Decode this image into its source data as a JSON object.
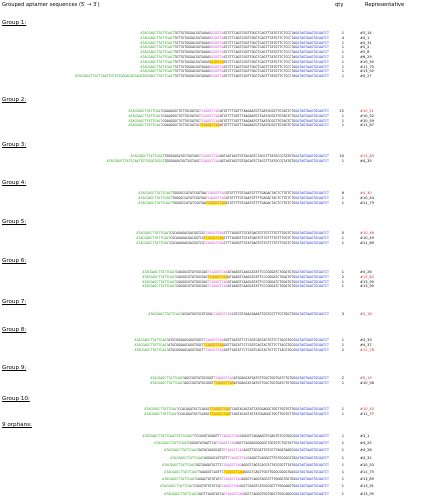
{
  "header": {
    "col1": "Grouped aptamer sequences (5′ → 3′)",
    "col2": "qty",
    "col3": "Representative"
  },
  "colors": {
    "primer_5": "#2aa11b",
    "primer_3": "#1f2fd0",
    "motif": "#cc3ccc",
    "highlight": "#fff200",
    "rep_highlight": "#d0222a"
  },
  "groups": [
    {
      "label": "Group 1:",
      "rows": [
        {
          "lead": "",
          "p5": "ATACGAGCTTATTCAAT",
          "body": "TGTTGTGGGACGGTAGAGGTCTTCAGTCGGTTGGCTCAGTTTATGTTCTCCCTA",
          "motif": "GCGGTCA",
          "p3": "GATAGTAAGTGCAATCT",
          "hl": false,
          "qty": "1",
          "rep": "#3_14",
          "red": false
        },
        {
          "lead": "",
          "p5": "ATACGAGCTTATTCAAT",
          "body": "TGTTGTGGGACGGTAGAGGTCTTCAGTCGGTTGGCTCAGTTTATGTTCTCCCTA",
          "motif": "GCGGTCA",
          "p3": "GATAGTAAGTGCAATCT",
          "hl": false,
          "qty": "4",
          "rep": "#4_1",
          "red": false
        },
        {
          "lead": "",
          "p5": "ATACGAGCTTATTCAAT",
          "body": "TGTTGTGGGACGGTAGAGGTCTTCAGTCGGTTGGCTCAGTTTATGTTCTCCCTA",
          "motif": "GCGGTCA",
          "p3": "GATAGTAAGTGCAATCT",
          "hl": false,
          "qty": "1",
          "rep": "#4_31",
          "red": false
        },
        {
          "lead": "",
          "p5": "ATACGAGCTTATTCAAT",
          "body": "TGTTGTGGGACGGTAGAGGTCTTCAGTCGGTTGGCTCAGTTTATGTTCTCCCTA",
          "motif": "GCGGTCA",
          "p3": "GATAGTAAGTGCAATCT",
          "hl": false,
          "qty": "1",
          "rep": "#5_2",
          "red": false
        },
        {
          "lead": "",
          "p5": "ATACGAGCTTATTCAAT",
          "body": "TGTTGTGGGACGGTAGAGGTCTTCAGTCGGTTGGCTCAGTTTATGTTCTCCCTA",
          "motif": "GCGGTCA",
          "p3": "GATAGTAAGTGCAATCT",
          "hl": false,
          "qty": "1",
          "rep": "#5_8",
          "red": false
        },
        {
          "lead": "",
          "p5": "ATACGAGCTTATTCAAT",
          "body": "TGTTGTGGGACGGTAGAGGTCTTCAGTCGGTTGGCTCAGTTTATGTTCTCCCTA",
          "motif": "GCGGTCA",
          "p3": "GATAGTAAGTGCAATCT",
          "hl": false,
          "qty": "1",
          "rep": "#6_29",
          "red": false
        },
        {
          "lead": "",
          "p5": "ATACGAGCTTATTCAAT",
          "body": "TGTTGTGGGACGGTAGAGGTCTTCAGTCGGTTGGCTCAGTTTATGTTCTCCCTA",
          "motif": "GCGGTCA",
          "p3": "GATAGTAAGTGCAATCT",
          "hl": true,
          "qty": "1",
          "rep": "#10_50",
          "red": false
        },
        {
          "lead": "",
          "p5": "ATACGAGCTTATTCAAT",
          "body": "TGTTGTGGGACGGTAGAGGTCTTCAGTCGGTTGGCTCAGTTTATGTTCTCCCTA",
          "motif": "GCGGTCA",
          "p3": "GATAGTAAGTGCAATCT",
          "hl": false,
          "qty": "1",
          "rep": "#11_70",
          "red": false
        },
        {
          "lead": "",
          "p5": "ATACGAGCTTATTCAAT",
          "body": "TGTTGTGGGACGGTAGAGGTCTTCAGTCGGTTGGCTCAGTTTATGTTCTCCCTA",
          "motif": "GCGGTCA",
          "p3": "GATAGTAAGTGCAATCT",
          "hl": false,
          "qty": "1",
          "rep": "#13_92",
          "red": false
        },
        {
          "lead": "ATACGAGCTTATTCAATTGTTGTGGGACGGTAG",
          "p5": "ATACGAGCTTATTCAAT",
          "body": "TGTTGTGGGACGGTAGAGGTCTTCAGTCGGTTGGCTCAGTTTATGTTCTCCCTA",
          "motif": "GCGGTCA",
          "p3": "GATAGTAAGTGCAATCT",
          "hl": false,
          "qty": "1",
          "rep": "#4_27",
          "red": false
        }
      ]
    },
    {
      "label": "Group 2:",
      "rows": [
        {
          "lead": "",
          "p5": "ATACGAGCTTATTCAAT",
          "body": "CGAAGGGCTGTTGCGATGCATGTTTTGGTTTAAGAATGTTAATGCGGTTGTAGTCTG",
          "motif": "TCAGGCTCAG",
          "p3": "GATAGTAAGTGCAATCT",
          "hl": false,
          "qty": "12",
          "rep": "#10_51",
          "red": true
        },
        {
          "lead": "",
          "p5": "ATACGAGCTTATTCAAT",
          "body": "CGAAGGGCTGTTGCGATGCATGTTTTGGTTTAAGAATGTTAATGCGGTTGTAGTCTG",
          "motif": "TCAGGCTCAG",
          "p3": "GATAGTAAGTGCAATCT",
          "hl": false,
          "qty": "1",
          "rep": "#10_52",
          "red": false
        },
        {
          "lead": "",
          "p5": "ATACGAGCTTATTCAAT",
          "body": "CGAAGGGCTGTTGCGATGCATGTTTTGGTTTAAGAATGTTAATGCGGTTGTAGTCTG",
          "motif": "TCAGGCTCAG",
          "p3": "GATAGTAAGTGCAATCT",
          "hl": false,
          "qty": "1",
          "rep": "#10_59",
          "red": false
        },
        {
          "lead": "",
          "p5": "ATACGAGCTTATTCAAT",
          "body": "CGAAGGGCTGTTGCGATGCATGTTTTGGTTTAAGAATGTTAATGCGGTTGTAGTCTG",
          "motif": "TCAGGCTCAG",
          "p3": "GATAGTAAGTGCAATCT",
          "hl": true,
          "qty": "1",
          "rep": "#11_67",
          "red": false
        }
      ]
    },
    {
      "label": "Group 3:",
      "rows": [
        {
          "lead": "",
          "p5": "ATACGAGCTTATTCAAT",
          "body": "TGGGGAGATGCTGGTAGCAGTAGTAGCTGTGACAGTCTACGTTTATGCCGTATGTG",
          "motif": "TCAGGCTCAG",
          "p3": "GATAGTAAGTGCAATCT",
          "hl": false,
          "qty": "10",
          "rep": "#13_83",
          "red": true
        },
        {
          "lead": "ATACGAGCTTATTCAATTGTTGGGTGGCG",
          "p5": "",
          "body": "TGGGGAGATGCTGGTAGCAGTAGTAGCTGTGACAGTCTACGTTTATGCCGTATGTG",
          "motif": "TCAGGCTCAG",
          "p3": "GATAGTAAGTGCAATCT",
          "hl": false,
          "qty": "1",
          "rep": "#4_35",
          "red": false
        }
      ]
    },
    {
      "label": "Group 4:",
      "rows": [
        {
          "lead": "",
          "p5": "ATACGAGCTTATTCAAT",
          "body": "TGGGGCCATATCGGTAAGTGTTTTGTGAATGTTTTGAGACTACTCTTGTCTG",
          "motif": "TCAGGCTCAG",
          "p3": "GATAGTAAGTGCAATCT",
          "hl": false,
          "qty": "6",
          "rep": "#4_30",
          "red": true
        },
        {
          "lead": "",
          "p5": "ATACGAGCTTATTCAAT",
          "body": "TGGGGCCATATCGGTAAGTGTTTTGTGAATGTTTTGAGACTACTCTTGTCTG",
          "motif": "TCAGGCTCAG",
          "p3": "GATAGTAAGTGCAATCT",
          "hl": false,
          "qty": "1",
          "rep": "#10_44",
          "red": false
        },
        {
          "lead": "",
          "p5": "ATACGAGCTTATTCAAT",
          "body": "TGGGGCCATATCGGTAAGTGTTTTGTGAATGTTTTGAGACTACTCTTGTCTG",
          "motif": "TCAGGCTCAG",
          "p3": "GATAGTAAGTGCAATCT",
          "hl": true,
          "qty": "1",
          "rep": "#11_79",
          "red": false
        }
      ]
    },
    {
      "label": "Group 5:",
      "rows": [
        {
          "lead": "",
          "p5": "ATACGAGCTTATTCAAT",
          "body": "CGCAGAGACGACGGTCGCTTTAGGGTTGTATGAGTGTTGTTTTGTTTGGTCTG",
          "motif": "TCAGGCTCAG",
          "p3": "GATAGTAAGTGCAATCT",
          "hl": false,
          "qty": "5",
          "rep": "#10_46",
          "red": true
        },
        {
          "lead": "",
          "p5": "ATACGAGCTTATTCAAT",
          "body": "CGCAGAGACGACGGTCGCTTTAGGGTTGTATGAGTGTTGTTTTGTTTGGTCTG",
          "motif": "TCAGGCTCAG",
          "p3": "GATAGTAAGTGCAATCT",
          "hl": true,
          "qty": "1",
          "rep": "#10_49",
          "red": false
        },
        {
          "lead": "",
          "p5": "ATACGAGCTTATTCAAT",
          "body": "CGCAGAGACGACGGTCGCTTTAGGGTTGTATGAGTGTTGTTTTGTTTGGTCTG",
          "motif": "TCAGGCTCAG",
          "p3": "GATAGTAAGTGCAATCT",
          "hl": false,
          "qty": "1",
          "rep": "#11_69",
          "red": false
        }
      ]
    },
    {
      "label": "Group 6:",
      "rows": [
        {
          "lead": "",
          "p5": "ATACGAGCTTATTCAAT",
          "body": "CAGGGCGTATGGCGACATAAGGTCAAGCATATTCCCGGGATCTGGATGTG",
          "motif": "TCAGGCTCAG",
          "p3": "GATAGTAAGTGCAATCT",
          "hl": false,
          "qty": "1",
          "rep": "#4_26",
          "red": false
        },
        {
          "lead": "",
          "p5": "ATACGAGCTTATTCAAT",
          "body": "CAGGGCGTATGGCGACATAAGGTCAAGCATATTCCCGGGATCTGGATGTG",
          "motif": "TCAGGCTCAG",
          "p3": "GATAGTAAGTGCAATCT",
          "hl": true,
          "qty": "2",
          "rep": "#13_82",
          "red": true
        },
        {
          "lead": "",
          "p5": "ATACGAGCTTATTCAAT",
          "body": "CAGGGCGTATGGCGACATAAGGTCAAGCATATTCCCGGGATCTGGATGTG",
          "motif": "TCAGGCTCAG",
          "p3": "GATAGTAAGTGCAATCT",
          "hl": false,
          "qty": "1",
          "rep": "#13_90",
          "red": false
        },
        {
          "lead": "",
          "p5": "ATACGAGCTTATTCAAT",
          "body": "CAGGGCGTATGGCGACATAAGGTCAAGCATATTCCCGGGATCTGGATGTG",
          "motif": "TCAGGCTCAG",
          "p3": "GATAGTAAGTGCAATCT",
          "hl": false,
          "qty": "1",
          "rep": "#13_95",
          "red": false
        }
      ]
    },
    {
      "label": "Group 7:",
      "rows": [
        {
          "lead": "",
          "p5": "ATACGAGCTTATTCAAT",
          "body": "ACGATGGTGCGTGGACGTCGTGAACGAAATTGGTCGTTTCGTGGTTG",
          "motif": "TCAGGCTCAG",
          "p3": "GATAGTAAGTGCAATCT",
          "hl": false,
          "qty": "3",
          "rep": "#5_18",
          "red": true
        }
      ]
    },
    {
      "label": "Group 8:",
      "rows": [
        {
          "lead": "",
          "p5": "ATACGAGCTTATTCAAT",
          "body": "ATGCGGGAGCAGGTGGCTGGTTGATATTCTCGGTCAGTACTGTTCTTACGTGCG",
          "motif": "TCAGGCTCAG",
          "p3": "GATAGTAAGTGCAATCT",
          "hl": false,
          "qty": "1",
          "rep": "#4_33",
          "red": false
        },
        {
          "lead": "",
          "p5": "ATACGAGCTTATTCAAT",
          "body": "ATGCGGGAGCAGGTGGCTGGTTGATATTCTCGGTCAGTACTGTTCTTACGTGCG",
          "motif": "TCAGGCTCAG",
          "p3": "GATAGTAAGTGCAATCT",
          "hl": true,
          "qty": "1",
          "rep": "#4_37",
          "red": false
        },
        {
          "lead": "",
          "p5": "ATACGAGCTTATTCAAT",
          "body": "ATGCGGGAGCAGGTGGCTGGTTGATATTCTCGGTCAGTACTGTTCTTACGTGCG",
          "motif": "TCAGGCTCAG",
          "p3": "GATAGTAAGTGCAATCT",
          "hl": false,
          "qty": "2",
          "rep": "#11_78",
          "red": true
        }
      ]
    },
    {
      "label": "Group 9:",
      "rows": [
        {
          "lead": "",
          "p5": "ATACGAGCTTATTCAAT",
          "body": "AGCCGGTATGCGGGTATGGAGCATGATGTTGGCTGGTGATCTGTGG",
          "motif": "TCAGGCTCAG",
          "p3": "GATAGTAAGTGCAATCT",
          "hl": false,
          "qty": "2",
          "rep": "#5_19",
          "red": true
        },
        {
          "lead": "",
          "p5": "ATACGAGCTTATTCAAT",
          "body": "AGCCGGTATGCGGGTATGGAGCATGATGTTGGCTGGTGATCTGTGG",
          "motif": "TCAGGCTCAG",
          "p3": "GATAGTAAGTGCAATCT",
          "hl": true,
          "qty": "1",
          "rep": "#10_56",
          "red": false
        }
      ]
    },
    {
      "label": "Group 10:",
      "rows": [
        {
          "lead": "",
          "p5": "ATACGAGCTTATTCAAT",
          "body": "CCACAGATGCTCAGGCTCAGTACAGTATTATGGAGGCTGGTTGGTGTTG",
          "motif": "TCAGGCTCAG",
          "p3": "GATAGTAAGTGCAATCT",
          "hl": true,
          "qty": "1",
          "rep": "#10_45",
          "red": true
        },
        {
          "lead": "",
          "p5": "ATACGAGCTTATTCAAT",
          "body": "CCACAGATGCTCAGGCTCAGTACAGTATTATGGAGGCTGGTTGGTGTTG",
          "motif": "TCAGGCTCAG",
          "p3": "GATAGTAAGTGCAATCT",
          "hl": true,
          "qty": "1",
          "rep": "#11_77",
          "red": false
        }
      ]
    },
    {
      "label": "9 orphans:",
      "rows": [
        {
          "lead": "ATACGAGCTTATTCAATTGTTCGAGT",
          "p5": "",
          "body": "TCCGGGTGGAGTTCAGGCTCAGAAGGTCGAGTGTCGTGGCG",
          "motif": "TCAGGCTCAG",
          "p3": "GATAGTAAGTGCAATCT",
          "hl": false,
          "qty": "1",
          "rep": "#3_1",
          "red": false
        },
        {
          "lead": "",
          "p5": "ATACGAGCTTATTCAAT",
          "body": "CGGGATATAATTCAGGCTCAGGACGGGGGCTGGTGTCTGGTATT",
          "motif": "TCAGGCTCAG",
          "p3": "GATAGTAAGTGCAATCT",
          "hl": false,
          "qty": "1",
          "rep": "#4_25",
          "red": false
        },
        {
          "lead": "",
          "p5": "ATACGAGCTTATTCAAT",
          "body": "GATACAGGGCATCAGGTTGCGATTGTCGTTAGATAAGCG",
          "motif": "TCAGGCTCAG",
          "p3": "GATAGTAAGTGCAATCT",
          "hl": false,
          "qty": "1",
          "rep": "#4_28",
          "red": false
        },
        {
          "lead": "",
          "p5": "ATACGAGCTTATTCAAT",
          "body": "AGGAGCATTGTTCAGGCTCAGGGTTTGTGCGGCGTG",
          "motif": "TCAGGCTCAG",
          "p3": "GATAGTAAGTGCAATCT",
          "hl": false,
          "qty": "1",
          "rep": "#4_31",
          "red": false
        },
        {
          "lead": "",
          "p5": "ATACGAGCTTATTCAAT",
          "body": "GGTGAGATGCTTCAGGCTCAGTCACGTCTATCGGTTTATG",
          "motif": "TCAGGCTCAG",
          "p3": "GATAGTAAGTGCAATCT",
          "hl": false,
          "qty": "1",
          "rep": "#10_53",
          "red": false
        },
        {
          "lead": "",
          "p5": "ATACGAGCTTATTCAAT",
          "body": "TGAAGGTCAGTTCAGGCTCAGTTGGTTGGGCGGGGTGAG",
          "motif": "TCAGGCTCAG",
          "p3": "GATAGTAAGTGCAATCT",
          "hl": true,
          "qty": "1",
          "rep": "#11_75",
          "red": false
        },
        {
          "lead": "",
          "p5": "ATACGAGCTTATTCAAT",
          "body": "CAGACTATGTATCAGGCTCAGGTAGCGTTTGGGGTGGTGG",
          "motif": "TCAGGCTCAG",
          "p3": "GATAGTAAGTGCAATCT",
          "hl": false,
          "qty": "1",
          "rep": "#13_89",
          "red": false
        },
        {
          "lead": "",
          "p5": "ATACGAGCTTATTCAAT",
          "body": "CGGGTGTGTGTCAGGCTCAGGTCATGGCGGTTTGGGAGGTG",
          "motif": "TCAGGCTCAG",
          "p3": "GATAGTAAGTGCAATCT",
          "hl": false,
          "qty": "1",
          "rep": "#13_91",
          "red": false
        },
        {
          "lead": "",
          "p5": "ATACGAGCTTATTCAAT",
          "body": "GATTTAGGTATCAGGCTCAGGGTGGTGGGTTGGCAGGCG",
          "motif": "TCAGGCTCAG",
          "p3": "GATAGTAAGTGCAATCT",
          "hl": false,
          "qty": "1",
          "rep": "#13_95",
          "red": false
        }
      ]
    }
  ]
}
